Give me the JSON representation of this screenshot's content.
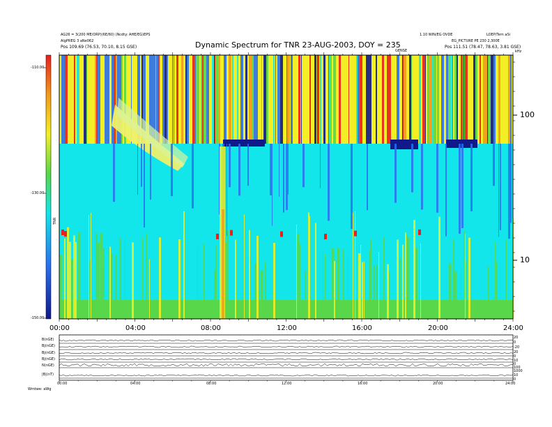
{
  "chart_data": {
    "type": "heatmap",
    "title": "Dynamic Spectrum for TNR 23-AUG-2003, DOY = 235",
    "x_ticks": [
      "00:00",
      "04:00",
      "08:00",
      "12:00",
      "16:00",
      "20:00",
      "24:00"
    ],
    "xlim_hours": [
      0,
      24
    ],
    "y_right_ticks": [
      "100",
      "10"
    ],
    "y_right_scale": "log",
    "y_right_unit": "kHz",
    "colorbar_ticks": [
      "-110.00",
      "-130.00",
      "-150.00"
    ],
    "colorbar_range": [
      -150,
      -110
    ],
    "colorbar_label": "TNR",
    "colors": {
      "red": "#e8201c",
      "orange": "#f39a1b",
      "yellow": "#f2f026",
      "green": "#58d74a",
      "cyan": "#12e6ea",
      "blue": "#2a6ff0",
      "navy": "#10188a"
    }
  },
  "header": {
    "left_line1": "AG26 = 3(200 ME/ORP)(6E/60) (Ncdty: AHE/EG)EPS",
    "left_line2": "AlgPREG 3 aNe062",
    "left_line3": "Pos   109.69 (76.53, 70.10, 8.15 GSE)",
    "right_line1": "1.10 WIN/EG OVDE",
    "right_line1b": "LOEP/Tern aSi",
    "right_line2": "EG_PICTURE PE 230 2,300E",
    "right_line3": "Pos   111.51 (78.47, 78.63, 3.81 GSE)",
    "center_label": "GENSE",
    "right_unit": "kHz"
  },
  "bottom_panel": {
    "labels": [
      "B(nGE)",
      "Bj(nGE)",
      "Bj(nGE)",
      "Bj(nGE)",
      "N(nGE)",
      "|B|(nT)"
    ],
    "right_ticks": [
      "20",
      "0",
      "-20",
      "20",
      "0",
      "10",
      "0",
      "100",
      "1000",
      "10",
      "0"
    ],
    "x_ticks": [
      "00:00",
      "04:00",
      "08:00",
      "12:00",
      "16:00",
      "20:00",
      "24:00"
    ],
    "footer": "Wmtwe:  aWg"
  }
}
